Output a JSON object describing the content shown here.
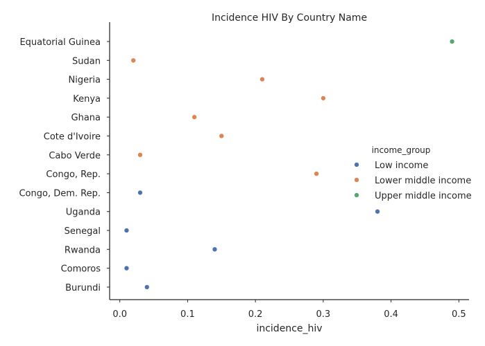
{
  "chart_data": {
    "type": "scatter",
    "title": "Incidence HIV By Country Name",
    "xlabel": "incidence_hiv",
    "ylabel": "",
    "xlim": [
      -0.015,
      0.515
    ],
    "xticks": [
      0,
      0.1,
      0.2,
      0.3,
      0.4,
      0.5
    ],
    "xtick_labels": [
      "0.0",
      "0.1",
      "0.2",
      "0.3",
      "0.4",
      "0.5"
    ],
    "categories": [
      "Equatorial Guinea",
      "Sudan",
      "Nigeria",
      "Kenya",
      "Ghana",
      "Cote d'Ivoire",
      "Cabo Verde",
      "Congo, Rep.",
      "Congo, Dem. Rep.",
      "Uganda",
      "Senegal",
      "Rwanda",
      "Comoros",
      "Burundi"
    ],
    "grid": false,
    "legend": {
      "title": "income_group",
      "placement": "right"
    },
    "series": [
      {
        "name": "Low income",
        "color": "#4c72b0",
        "points": [
          {
            "category": "Congo, Dem. Rep.",
            "x": 0.03
          },
          {
            "category": "Uganda",
            "x": 0.38
          },
          {
            "category": "Senegal",
            "x": 0.01
          },
          {
            "category": "Rwanda",
            "x": 0.14
          },
          {
            "category": "Comoros",
            "x": 0.01
          },
          {
            "category": "Burundi",
            "x": 0.04
          }
        ]
      },
      {
        "name": "Lower middle income",
        "color": "#dd8452",
        "points": [
          {
            "category": "Sudan",
            "x": 0.02
          },
          {
            "category": "Nigeria",
            "x": 0.21
          },
          {
            "category": "Kenya",
            "x": 0.3
          },
          {
            "category": "Ghana",
            "x": 0.11
          },
          {
            "category": "Cote d'Ivoire",
            "x": 0.15
          },
          {
            "category": "Cabo Verde",
            "x": 0.03
          },
          {
            "category": "Congo, Rep.",
            "x": 0.29
          }
        ]
      },
      {
        "name": "Upper middle income",
        "color": "#55a868",
        "points": [
          {
            "category": "Equatorial Guinea",
            "x": 0.49
          }
        ]
      }
    ]
  }
}
